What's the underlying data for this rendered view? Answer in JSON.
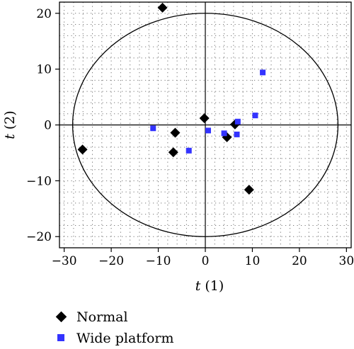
{
  "chart_data": {
    "type": "scatter",
    "xlabel_var": "t",
    "xlabel_idx": "(1)",
    "ylabel_var": "t",
    "ylabel_idx": "(2)",
    "xlim": [
      -31,
      31
    ],
    "ylim": [
      -22,
      22
    ],
    "xticks": [
      -30,
      -20,
      -10,
      0,
      10,
      20,
      30
    ],
    "yticks": [
      -20,
      -10,
      0,
      10,
      20
    ],
    "xtick_labels": [
      "−30",
      "−20",
      "−10",
      "0",
      "10",
      "20",
      "30"
    ],
    "ytick_labels": [
      "−20",
      "−10",
      "0",
      "10",
      "20"
    ],
    "grid": "dotted",
    "ellipse": {
      "cx": 0,
      "cy": 0,
      "rx": 28.2,
      "ry": 20
    },
    "series": [
      {
        "name": "Normal",
        "marker": "diamond",
        "color": "#000000",
        "points": [
          [
            -9.1,
            21.0
          ],
          [
            -26.1,
            -4.4
          ],
          [
            -6.4,
            -1.4
          ],
          [
            -6.8,
            -4.9
          ],
          [
            -0.2,
            1.2
          ],
          [
            4.6,
            -2.2
          ],
          [
            6.3,
            0.1
          ],
          [
            9.3,
            -11.6
          ]
        ]
      },
      {
        "name": "Wide platform",
        "marker": "square",
        "color": "#3333ff",
        "points": [
          [
            12.2,
            9.4
          ],
          [
            -11.1,
            -0.6
          ],
          [
            -3.5,
            -4.6
          ],
          [
            0.6,
            -1.0
          ],
          [
            4.0,
            -1.5
          ],
          [
            6.7,
            -1.7
          ],
          [
            6.9,
            0.6
          ],
          [
            10.6,
            1.7
          ]
        ]
      }
    ]
  }
}
